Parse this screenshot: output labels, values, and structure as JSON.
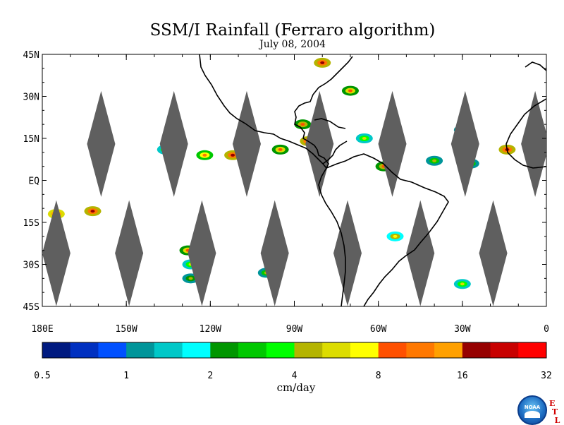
{
  "title": "SSM/I Rainfall (Ferraro algorithm)",
  "subtitle": "July 08, 2004",
  "lat_labels": [
    "45N",
    "30N",
    "15N",
    "EQ",
    "15S",
    "30S",
    "45S"
  ],
  "lat_values": [
    45,
    30,
    15,
    0,
    -15,
    -30,
    -45
  ],
  "lon_labels": [
    "180E",
    "150W",
    "120W",
    "90W",
    "60W",
    "30W",
    "0"
  ],
  "lon_values": [
    -180,
    -150,
    -120,
    -90,
    -60,
    -30,
    0
  ],
  "map_extent": {
    "lon": [
      -180,
      0
    ],
    "lat": [
      -45,
      45
    ]
  },
  "colorbar": {
    "tick_labels": [
      "0.5",
      "1",
      "2",
      "4",
      "8",
      "16",
      "32"
    ],
    "unit": "cm/day",
    "colors": [
      "#001a80",
      "#0030c0",
      "#0050ff",
      "#00959a",
      "#00c8c8",
      "#00ffff",
      "#009600",
      "#00c800",
      "#00ff00",
      "#b4b400",
      "#dcdc00",
      "#ffff00",
      "#ff5000",
      "#ff7800",
      "#ffa000",
      "#960000",
      "#c80000",
      "#ff0000"
    ]
  },
  "swath_gaps": [
    {
      "lon": -159,
      "lat": 13
    },
    {
      "lon": -133,
      "lat": 13
    },
    {
      "lon": -107,
      "lat": 13
    },
    {
      "lon": -81,
      "lat": 13
    },
    {
      "lon": -55,
      "lat": 13
    },
    {
      "lon": -29,
      "lat": 13
    },
    {
      "lon": -4,
      "lat": 13
    },
    {
      "lon": -175,
      "lat": -26
    },
    {
      "lon": -149,
      "lat": -26
    },
    {
      "lon": -123,
      "lat": -26
    },
    {
      "lon": -97,
      "lat": -26
    },
    {
      "lon": -71,
      "lat": -26
    },
    {
      "lon": -45,
      "lat": -26
    },
    {
      "lon": -19,
      "lat": -26
    }
  ],
  "rain_areas": [
    {
      "lon": -127,
      "lat": -30,
      "v": 6
    },
    {
      "lon": -128,
      "lat": -25,
      "v": 10
    },
    {
      "lon": -127,
      "lat": -35,
      "v": 4
    },
    {
      "lon": -100,
      "lat": -33,
      "v": 5
    },
    {
      "lon": -54,
      "lat": -20,
      "v": 7
    },
    {
      "lon": -30,
      "lat": -37,
      "v": 6
    },
    {
      "lon": -162,
      "lat": -11,
      "v": 18
    },
    {
      "lon": -175,
      "lat": -12,
      "v": 25
    },
    {
      "lon": -136,
      "lat": 11,
      "v": 6
    },
    {
      "lon": -122,
      "lat": 9,
      "v": 12
    },
    {
      "lon": -112,
      "lat": 9,
      "v": 20
    },
    {
      "lon": -95,
      "lat": 11,
      "v": 10
    },
    {
      "lon": -85,
      "lat": 14,
      "v": 20
    },
    {
      "lon": -80,
      "lat": 42,
      "v": 20
    },
    {
      "lon": -70,
      "lat": 32,
      "v": 10
    },
    {
      "lon": -65,
      "lat": 15,
      "v": 6
    },
    {
      "lon": -58,
      "lat": 5,
      "v": 8
    },
    {
      "lon": -40,
      "lat": 7,
      "v": 5
    },
    {
      "lon": -27,
      "lat": 6,
      "v": 5
    },
    {
      "lon": -14,
      "lat": 11,
      "v": 20
    },
    {
      "lon": -30,
      "lat": 18,
      "v": 5
    },
    {
      "lon": -87,
      "lat": 20,
      "v": 8
    }
  ]
}
